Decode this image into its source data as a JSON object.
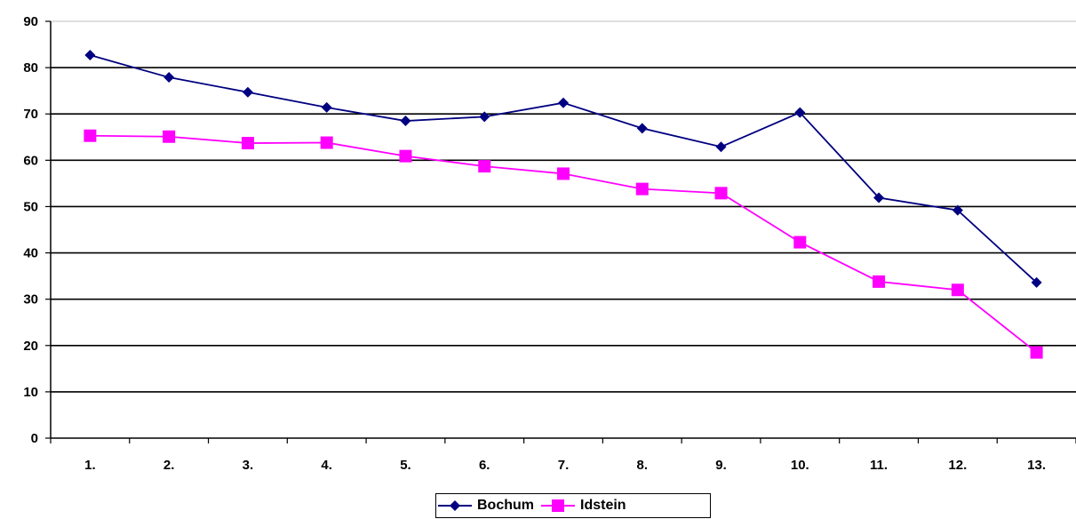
{
  "chart_data": {
    "type": "line",
    "title": "",
    "xlabel": "",
    "ylabel": "",
    "categories": [
      "1.",
      "2.",
      "3.",
      "4.",
      "5.",
      "6.",
      "7.",
      "8.",
      "9.",
      "10.",
      "11.",
      "12.",
      "13."
    ],
    "ylim": [
      0,
      90
    ],
    "yticks": [
      "0",
      "10",
      "20",
      "30",
      "40",
      "50",
      "60",
      "70",
      "80",
      "90"
    ],
    "grid": true,
    "legend_position": "bottom",
    "series": [
      {
        "name": "Bochum",
        "color": "#000080",
        "marker": "diamond",
        "values": [
          82.7,
          77.9,
          74.7,
          71.4,
          68.5,
          69.4,
          72.4,
          66.9,
          62.9,
          70.3,
          51.9,
          49.2,
          33.6
        ]
      },
      {
        "name": "Idstein",
        "color": "#FF00FF",
        "marker": "square",
        "values": [
          65.3,
          65.1,
          63.7,
          63.8,
          60.9,
          58.7,
          57.1,
          53.8,
          52.9,
          42.3,
          33.8,
          32.0,
          18.5
        ]
      }
    ]
  }
}
